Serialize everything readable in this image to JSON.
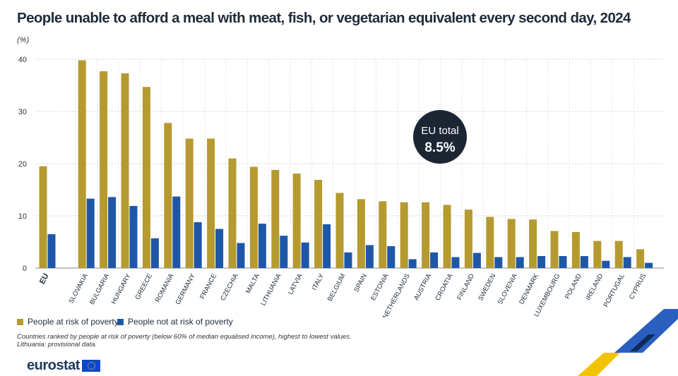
{
  "title": "People unable to afford a meal with meat, fish, or vegetarian equivalent every second day, 2024",
  "unit_label": "(%)",
  "legend": {
    "poverty": "People at risk of poverty",
    "not_poverty": "People not at risk of poverty"
  },
  "notes": {
    "line1": "Countries ranked by people at risk of poverty (below 60% of median equalised income), highest to lowest values.",
    "line2": "Lithuania: provisional data."
  },
  "callout": {
    "label": "EU total",
    "value": "8.5%"
  },
  "logo_text": "eurostat",
  "colors": {
    "poverty": "#b59a2f",
    "not_poverty": "#1f57a8",
    "callout_bg": "#1c2633",
    "grid": "#c9c9c9"
  },
  "chart_data": {
    "type": "bar",
    "y_ticks": [
      0,
      10,
      20,
      30,
      40
    ],
    "ylim": [
      0,
      40
    ],
    "grid": true,
    "legend_position": "bottom-left",
    "categories": [
      "EU",
      "SLOVAKIA",
      "BULGARIA",
      "HUNGARY",
      "GREECE",
      "ROMANIA",
      "GERMANY",
      "FRANCE",
      "CZECHIA",
      "MALTA",
      "LITHUANIA",
      "LATVIA",
      "ITALY",
      "BELGIUM",
      "SPAIN",
      "ESTONIA",
      "NETHERLANDS",
      "AUSTRIA",
      "CROATIA",
      "FINLAND",
      "SWEDEN",
      "SLOVENIA",
      "DENMARK",
      "LUXEMBOURG",
      "POLAND",
      "IRELAND",
      "PORTUGAL",
      "CYPRUS"
    ],
    "series": [
      {
        "name": "People at risk of poverty",
        "values": [
          19.5,
          39.8,
          37.7,
          37.3,
          34.7,
          27.8,
          24.8,
          24.8,
          21.0,
          19.4,
          18.8,
          18.1,
          16.9,
          14.4,
          13.2,
          12.8,
          12.6,
          12.6,
          12.1,
          11.2,
          9.8,
          9.4,
          9.3,
          7.1,
          6.9,
          5.2,
          5.2,
          3.6
        ]
      },
      {
        "name": "People not at risk of poverty",
        "values": [
          6.5,
          13.3,
          13.6,
          11.9,
          5.7,
          13.7,
          8.8,
          7.5,
          4.8,
          8.5,
          6.2,
          4.9,
          8.4,
          3.0,
          4.4,
          4.2,
          1.7,
          3.0,
          2.1,
          2.9,
          2.1,
          2.1,
          2.3,
          2.3,
          2.3,
          1.4,
          2.1,
          1.0
        ]
      }
    ]
  }
}
